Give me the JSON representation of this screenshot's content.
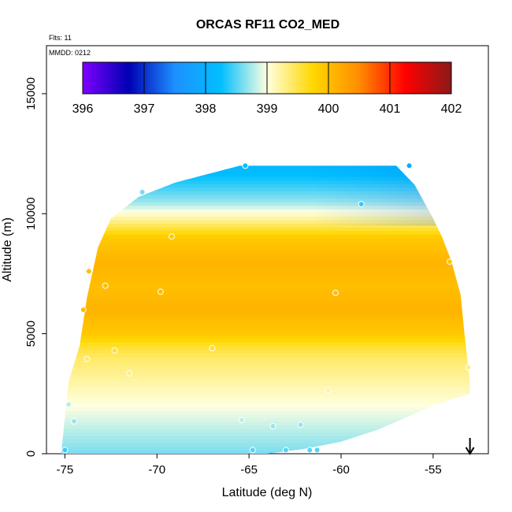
{
  "chart_data": {
    "type": "heatmap",
    "title": "ORCAS RF11 CO2_MED",
    "xlabel": "Latitude (deg N)",
    "ylabel": "Altitude (m)",
    "xlim": [
      -76,
      -52
    ],
    "ylim": [
      0,
      17000
    ],
    "xticks": [
      -75,
      -70,
      -65,
      -60,
      -55
    ],
    "yticks": [
      0,
      5000,
      10000,
      15000
    ],
    "flights_note": "Flts: 11",
    "date_note": "MMDD: 0212",
    "colorbar": {
      "min": 396,
      "max": 402,
      "ticks": [
        396,
        397,
        398,
        399,
        400,
        401,
        402
      ],
      "stops": [
        "#7f00ff",
        "#0000b3",
        "#1e90ff",
        "#00bfff",
        "#ffffe0",
        "#ffd700",
        "#ff8c00",
        "#ff0000",
        "#8b1a1a"
      ]
    },
    "field_outline": {
      "x": [
        -75.2,
        -74.8,
        -74.2,
        -73.8,
        -73.2,
        -72.5,
        -71.0,
        -69.0,
        -67.0,
        -65.5,
        -62.0,
        -60.0,
        -57.0,
        -56.0,
        -55.0,
        -54.5,
        -54.0,
        -53.5,
        -53.3,
        -53.0,
        -53.0,
        -55.0,
        -56.5,
        -58.0,
        -60.0,
        -62.0,
        -64.0,
        -66.0,
        -68.0,
        -70.0,
        -72.0,
        -73.5,
        -75.0
      ],
      "y": [
        0,
        3000,
        4500,
        6500,
        8600,
        9800,
        10700,
        11300,
        11700,
        12000,
        12000,
        12000,
        12000,
        11200,
        9800,
        9000,
        8000,
        6600,
        5000,
        3000,
        2500,
        2000,
        1500,
        1000,
        500,
        200,
        0,
        0,
        0,
        0,
        0,
        0,
        0
      ]
    },
    "profile": {
      "altitudes": [
        0,
        1500,
        3000,
        4000,
        4500,
        5000,
        6000,
        7000,
        8000,
        9000,
        9700,
        10500,
        11200,
        12000
      ],
      "values": [
        398.6,
        398.9,
        399.2,
        399.4,
        399.6,
        399.9,
        400.1,
        400.0,
        400.1,
        399.9,
        399.3,
        398.7,
        398.4,
        398.1
      ]
    },
    "sample_points": [
      {
        "lat": -75.0,
        "alt": 150,
        "co2": 398.4
      },
      {
        "lat": -74.8,
        "alt": 2050,
        "co2": 398.8
      },
      {
        "lat": -74.5,
        "alt": 1350,
        "co2": 398.7
      },
      {
        "lat": -74.0,
        "alt": 6000,
        "co2": 400.0
      },
      {
        "lat": -73.8,
        "alt": 3950,
        "co2": 399.4
      },
      {
        "lat": -73.7,
        "alt": 7600,
        "co2": 400.0
      },
      {
        "lat": -72.8,
        "alt": 7000,
        "co2": 400.0
      },
      {
        "lat": -72.3,
        "alt": 4300,
        "co2": 399.6
      },
      {
        "lat": -71.5,
        "alt": 3350,
        "co2": 399.3
      },
      {
        "lat": -70.8,
        "alt": 10900,
        "co2": 398.6
      },
      {
        "lat": -69.8,
        "alt": 6750,
        "co2": 400.0
      },
      {
        "lat": -69.2,
        "alt": 9050,
        "co2": 399.9
      },
      {
        "lat": -67.0,
        "alt": 4400,
        "co2": 399.6
      },
      {
        "lat": -65.4,
        "alt": 1400,
        "co2": 398.8
      },
      {
        "lat": -65.2,
        "alt": 12000,
        "co2": 398.2
      },
      {
        "lat": -64.8,
        "alt": 150,
        "co2": 398.5
      },
      {
        "lat": -63.7,
        "alt": 1150,
        "co2": 398.7
      },
      {
        "lat": -63.0,
        "alt": 150,
        "co2": 398.5
      },
      {
        "lat": -62.2,
        "alt": 1200,
        "co2": 398.7
      },
      {
        "lat": -61.7,
        "alt": 150,
        "co2": 398.5
      },
      {
        "lat": -61.3,
        "alt": 150,
        "co2": 398.5
      },
      {
        "lat": -60.7,
        "alt": 2650,
        "co2": 399.2
      },
      {
        "lat": -60.3,
        "alt": 6700,
        "co2": 400.0
      },
      {
        "lat": -58.9,
        "alt": 10400,
        "co2": 398.4
      },
      {
        "lat": -56.3,
        "alt": 12000,
        "co2": 397.9
      },
      {
        "lat": -54.1,
        "alt": 8000,
        "co2": 399.9
      },
      {
        "lat": -53.1,
        "alt": 3600,
        "co2": 399.3
      }
    ],
    "arrow_marker": {
      "lat": -53.0,
      "direction": "down"
    }
  }
}
